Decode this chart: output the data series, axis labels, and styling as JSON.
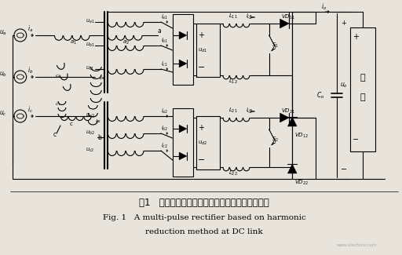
{
  "title_cn": "图1   基于直流侧有源谐波抑制方法的多脉波整流器",
  "title_en_line1": "Fig. 1   A multi-pulse rectifier based on harmonic",
  "title_en_line2": "reduction method at DC link",
  "bg_color": "#e8e4dc",
  "line_color": "#000000",
  "figsize": [
    5.12,
    3.25
  ],
  "dpi": 100
}
